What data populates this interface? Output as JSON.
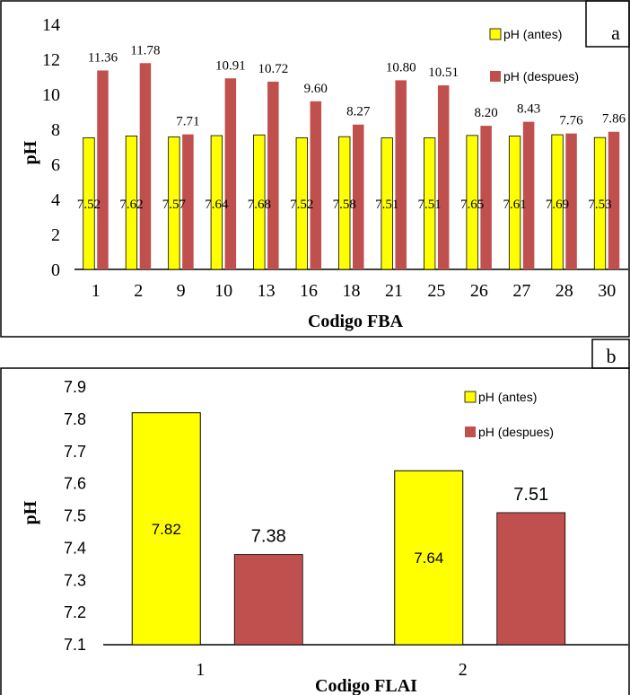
{
  "colors": {
    "antes": "#ffff00",
    "despues": "#c0504d",
    "frame": "#000000"
  },
  "chart_data": [
    {
      "type": "bar",
      "panel_label": "a",
      "xlabel": "Codigo FBA",
      "ylabel": "pH",
      "ylim": [
        0,
        14
      ],
      "yticks": [
        "0",
        "2",
        "4",
        "6",
        "8",
        "10",
        "12",
        "14"
      ],
      "categories": [
        "1",
        "2",
        "9",
        "10",
        "13",
        "16",
        "18",
        "21",
        "25",
        "26",
        "27",
        "28",
        "30"
      ],
      "series": [
        {
          "name": "pH (antes)",
          "values": [
            7.52,
            7.62,
            7.57,
            7.64,
            7.68,
            7.52,
            7.58,
            7.51,
            7.51,
            7.65,
            7.61,
            7.69,
            7.53
          ],
          "labels": [
            "7.52",
            "7.62",
            "7.57",
            "7.64",
            "7.68",
            "7.52",
            "7.58",
            "7.51",
            "7.51",
            "7.65",
            "7.61",
            "7.69",
            "7.53"
          ]
        },
        {
          "name": "pH (despues)",
          "values": [
            11.36,
            11.78,
            7.71,
            10.91,
            10.72,
            9.6,
            8.27,
            10.8,
            10.51,
            8.2,
            8.43,
            7.76,
            7.86
          ],
          "labels": [
            "11.36",
            "11.78",
            "7.71",
            "10.91",
            "10.72",
            "9.60",
            "8.27",
            "10.80",
            "10.51",
            "8.20",
            "8.43",
            "7.76",
            "7.86"
          ]
        }
      ],
      "legend": "top-right",
      "grid": false
    },
    {
      "type": "bar",
      "panel_label": "b",
      "xlabel": "Codigo FLAI",
      "ylabel": "pH",
      "ylim": [
        7.1,
        7.9
      ],
      "yticks": [
        "7.1",
        "7.2",
        "7.3",
        "7.4",
        "7.5",
        "7.6",
        "7.7",
        "7.8",
        "7.9"
      ],
      "categories": [
        "1",
        "2"
      ],
      "series": [
        {
          "name": "pH (antes)",
          "values": [
            7.82,
            7.64
          ],
          "labels": [
            "7.82",
            "7.64"
          ]
        },
        {
          "name": "pH (despues)",
          "values": [
            7.38,
            7.51
          ],
          "labels": [
            "7.38",
            "7.51"
          ]
        }
      ],
      "legend": "top-right",
      "grid": false
    }
  ]
}
